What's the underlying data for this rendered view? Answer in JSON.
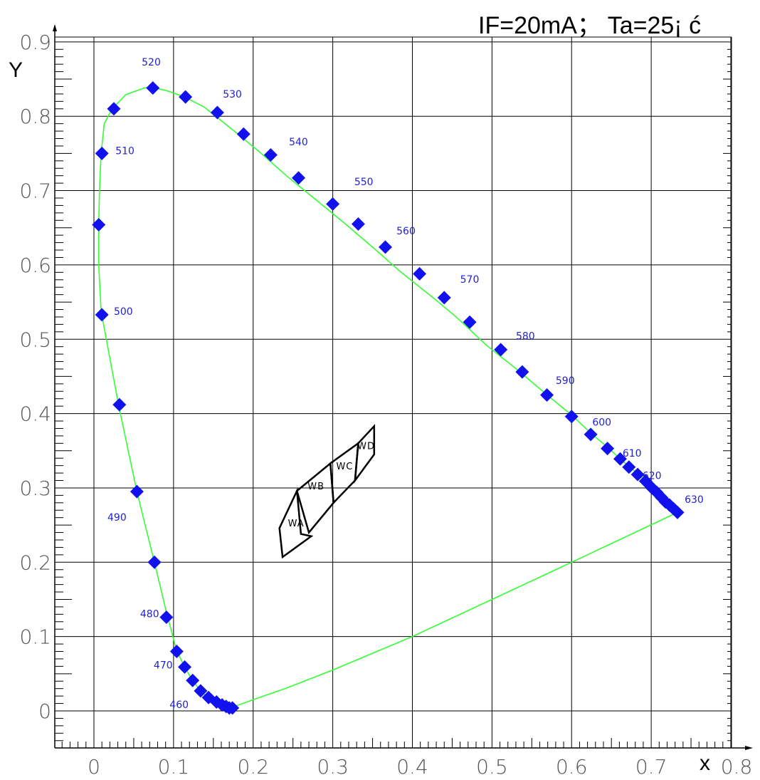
{
  "chart_data": {
    "type": "line",
    "title": "",
    "conditions": "IF=20mA； Ta=25¡ ć",
    "xlabel": "x",
    "ylabel": "Y",
    "xlim": [
      -0.05,
      0.8
    ],
    "ylim": [
      -0.07,
      0.9
    ],
    "x_ticks": [
      "0",
      "0.1",
      "0.2",
      "0.3",
      "0.4",
      "0.5",
      "0.6",
      "0.7",
      "0.8"
    ],
    "y_ticks": [
      "0",
      "0.1",
      "0.2",
      "0.3",
      "0.4",
      "0.5",
      "0.6",
      "0.7",
      "0.8",
      "0.9"
    ],
    "grid": true,
    "colors": {
      "locus": "#33ff33",
      "markers": "#1111ee",
      "labels": "#2222cc",
      "grid": "#000000",
      "bins": "#000000"
    },
    "locus": [
      [
        0.174,
        0.005
      ],
      [
        0.173,
        0.005
      ],
      [
        0.17,
        0.005
      ],
      [
        0.166,
        0.006
      ],
      [
        0.161,
        0.008
      ],
      [
        0.154,
        0.011
      ],
      [
        0.144,
        0.017
      ],
      [
        0.134,
        0.027
      ],
      [
        0.124,
        0.041
      ],
      [
        0.114,
        0.059
      ],
      [
        0.104,
        0.081
      ],
      [
        0.091,
        0.133
      ],
      [
        0.076,
        0.2
      ],
      [
        0.054,
        0.295
      ],
      [
        0.031,
        0.411
      ],
      [
        0.019,
        0.48
      ],
      [
        0.009,
        0.538
      ],
      [
        0.006,
        0.6
      ],
      [
        0.006,
        0.655
      ],
      [
        0.007,
        0.7
      ],
      [
        0.009,
        0.75
      ],
      [
        0.013,
        0.79
      ],
      [
        0.023,
        0.81
      ],
      [
        0.04,
        0.829
      ],
      [
        0.063,
        0.838
      ],
      [
        0.074,
        0.838
      ],
      [
        0.09,
        0.835
      ],
      [
        0.114,
        0.826
      ],
      [
        0.139,
        0.812
      ],
      [
        0.174,
        0.782
      ],
      [
        0.208,
        0.752
      ],
      [
        0.244,
        0.718
      ],
      [
        0.283,
        0.684
      ],
      [
        0.316,
        0.655
      ],
      [
        0.352,
        0.622
      ],
      [
        0.386,
        0.59
      ],
      [
        0.427,
        0.555
      ],
      [
        0.455,
        0.53
      ],
      [
        0.493,
        0.492
      ],
      [
        0.533,
        0.458
      ],
      [
        0.566,
        0.428
      ],
      [
        0.6,
        0.398
      ],
      [
        0.625,
        0.373
      ],
      [
        0.648,
        0.352
      ],
      [
        0.665,
        0.335
      ],
      [
        0.68,
        0.322
      ],
      [
        0.693,
        0.31
      ],
      [
        0.706,
        0.295
      ],
      [
        0.722,
        0.278
      ],
      [
        0.733,
        0.267
      ],
      [
        0.6,
        0.2
      ],
      [
        0.5,
        0.15
      ],
      [
        0.4,
        0.1
      ],
      [
        0.3,
        0.055
      ],
      [
        0.24,
        0.03
      ],
      [
        0.2,
        0.015
      ],
      [
        0.174,
        0.005
      ]
    ],
    "markers": [
      [
        0.174,
        0.004
      ],
      [
        0.17,
        0.004
      ],
      [
        0.166,
        0.006
      ],
      [
        0.161,
        0.008
      ],
      [
        0.154,
        0.012
      ],
      [
        0.144,
        0.018
      ],
      [
        0.134,
        0.027
      ],
      [
        0.124,
        0.041
      ],
      [
        0.114,
        0.059
      ],
      [
        0.104,
        0.08
      ],
      [
        0.091,
        0.126
      ],
      [
        0.076,
        0.2
      ],
      [
        0.054,
        0.295
      ],
      [
        0.032,
        0.412
      ],
      [
        0.01,
        0.533
      ],
      [
        0.006,
        0.654
      ],
      [
        0.01,
        0.75
      ],
      [
        0.025,
        0.81
      ],
      [
        0.074,
        0.838
      ],
      [
        0.115,
        0.826
      ],
      [
        0.155,
        0.805
      ],
      [
        0.188,
        0.776
      ],
      [
        0.222,
        0.748
      ],
      [
        0.257,
        0.717
      ],
      [
        0.3,
        0.682
      ],
      [
        0.332,
        0.655
      ],
      [
        0.366,
        0.624
      ],
      [
        0.409,
        0.588
      ],
      [
        0.44,
        0.556
      ],
      [
        0.472,
        0.523
      ],
      [
        0.511,
        0.486
      ],
      [
        0.538,
        0.456
      ],
      [
        0.569,
        0.425
      ],
      [
        0.6,
        0.396
      ],
      [
        0.624,
        0.372
      ],
      [
        0.645,
        0.353
      ],
      [
        0.661,
        0.339
      ],
      [
        0.672,
        0.328
      ],
      [
        0.683,
        0.318
      ],
      [
        0.693,
        0.309
      ],
      [
        0.701,
        0.3
      ],
      [
        0.707,
        0.294
      ],
      [
        0.713,
        0.287
      ],
      [
        0.718,
        0.281
      ],
      [
        0.723,
        0.277
      ],
      [
        0.728,
        0.272
      ],
      [
        0.733,
        0.267
      ]
    ],
    "wavelength_labels": [
      {
        "text": "460",
        "x": 0.095,
        "y": 0.004
      },
      {
        "text": "470",
        "x": 0.075,
        "y": 0.057
      },
      {
        "text": "480",
        "x": 0.058,
        "y": 0.126
      },
      {
        "text": "490",
        "x": 0.017,
        "y": 0.256
      },
      {
        "text": "500",
        "x": 0.025,
        "y": 0.533
      },
      {
        "text": "510",
        "x": 0.027,
        "y": 0.749
      },
      {
        "text": "520",
        "x": 0.06,
        "y": 0.868
      },
      {
        "text": "530",
        "x": 0.162,
        "y": 0.825
      },
      {
        "text": "540",
        "x": 0.245,
        "y": 0.761
      },
      {
        "text": "550",
        "x": 0.327,
        "y": 0.707
      },
      {
        "text": "560",
        "x": 0.38,
        "y": 0.641
      },
      {
        "text": "570",
        "x": 0.46,
        "y": 0.576
      },
      {
        "text": "580",
        "x": 0.53,
        "y": 0.5
      },
      {
        "text": "590",
        "x": 0.58,
        "y": 0.44
      },
      {
        "text": "600",
        "x": 0.626,
        "y": 0.384
      },
      {
        "text": "610",
        "x": 0.664,
        "y": 0.342
      },
      {
        "text": "620",
        "x": 0.689,
        "y": 0.312
      },
      {
        "text": "630",
        "x": 0.742,
        "y": 0.28
      }
    ],
    "bins": [
      {
        "name": "WA",
        "polygon": [
          [
            0.237,
            0.207
          ],
          [
            0.233,
            0.246
          ],
          [
            0.255,
            0.296
          ],
          [
            0.26,
            0.238
          ],
          [
            0.273,
            0.235
          ]
        ],
        "label_at": [
          0.254,
          0.248
        ]
      },
      {
        "name": "WB",
        "polygon": [
          [
            0.255,
            0.296
          ],
          [
            0.297,
            0.333
          ],
          [
            0.301,
            0.28
          ],
          [
            0.27,
            0.24
          ]
        ],
        "label_at": [
          0.279,
          0.298
        ]
      },
      {
        "name": "WC",
        "polygon": [
          [
            0.301,
            0.28
          ],
          [
            0.297,
            0.333
          ],
          [
            0.332,
            0.36
          ],
          [
            0.328,
            0.31
          ]
        ],
        "label_at": [
          0.315,
          0.325
        ]
      },
      {
        "name": "WD",
        "polygon": [
          [
            0.332,
            0.36
          ],
          [
            0.352,
            0.383
          ],
          [
            0.352,
            0.345
          ],
          [
            0.328,
            0.31
          ]
        ],
        "label_at": [
          0.342,
          0.352
        ]
      }
    ]
  }
}
